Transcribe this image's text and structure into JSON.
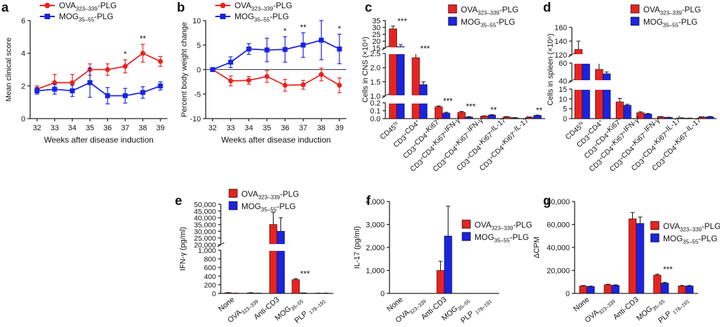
{
  "colors": {
    "ova": "#e8231f",
    "mog": "#1a23e0",
    "axis": "#222222"
  },
  "legend": {
    "ova": "OVA323–339-PLG",
    "mog": "MOG35–55-PLG"
  },
  "chart_data": [
    {
      "panel": "a",
      "type": "line",
      "xlabel": "Weeks after disease induction",
      "ylabel": "Mean clinical score",
      "x": [
        32,
        33,
        34,
        35,
        36,
        37,
        38,
        39
      ],
      "ylim": [
        0,
        6
      ],
      "yticks": [
        0,
        2,
        4,
        6
      ],
      "legend_position": "top",
      "series": [
        {
          "name": "OVA323–339-PLG",
          "values": [
            1.8,
            2.2,
            2.2,
            3.0,
            3.0,
            3.2,
            4.0,
            3.5
          ],
          "errors": [
            0.2,
            0.5,
            0.5,
            0.35,
            0.35,
            0.4,
            0.55,
            0.3
          ]
        },
        {
          "name": "MOG35–55-PLG",
          "values": [
            1.7,
            1.8,
            1.7,
            2.2,
            1.4,
            1.4,
            1.6,
            2.0
          ],
          "errors": [
            0.2,
            0.3,
            0.35,
            0.9,
            0.5,
            0.45,
            0.35,
            0.25
          ]
        }
      ],
      "annotations": [
        {
          "x": 37,
          "text": "*"
        },
        {
          "x": 38,
          "text": "**"
        }
      ]
    },
    {
      "panel": "b",
      "type": "line",
      "xlabel": "Weeks after disease induction",
      "ylabel": "Percent body weight change",
      "x": [
        32,
        33,
        34,
        35,
        36,
        37,
        38,
        39
      ],
      "ylim": [
        -10,
        10
      ],
      "yticks": [
        -10,
        -5,
        0,
        5,
        10
      ],
      "legend_position": "top",
      "series": [
        {
          "name": "OVA323–339-PLG",
          "values": [
            0,
            -2.3,
            -2.2,
            -1.4,
            -3.2,
            -3.1,
            -1.0,
            -3.2
          ],
          "errors": [
            0.2,
            1.0,
            0.8,
            1.2,
            1.2,
            0.9,
            1.3,
            1.5
          ]
        },
        {
          "name": "MOG35–55-PLG",
          "values": [
            0,
            1.5,
            4.2,
            4.0,
            4.1,
            5.0,
            6.0,
            4.2
          ],
          "errors": [
            0.2,
            1.1,
            1.1,
            2.4,
            2.6,
            2.5,
            4.0,
            3.0
          ]
        }
      ],
      "annotations": [
        {
          "x": 36,
          "text": "*"
        },
        {
          "x": 37,
          "text": "**"
        },
        {
          "x": 39,
          "text": "*"
        }
      ]
    },
    {
      "panel": "c",
      "type": "bar",
      "ylabel": "Cells in CNS (×10⁴)",
      "categories": [
        "CD45hi",
        "CD3+CD4+",
        "CD3+CD4+Ki67+",
        "CD3+CD4+Ki67+IFN-γ+",
        "CD3+CD4+Ki67−IFN-γ+",
        "CD3+CD4+Ki67+IL-17+",
        "CD3+CD4+Ki67−IL-17+"
      ],
      "broken_axis_segments": [
        {
          "range": [
            0,
            0.2
          ],
          "ticks": [
            0,
            0.1,
            0.2
          ]
        },
        {
          "range": [
            1.0,
            2.5
          ],
          "ticks": [
            1.0,
            1.5,
            2.0,
            2.5
          ]
        },
        {
          "range": [
            15,
            35
          ],
          "ticks": [
            15,
            20,
            25,
            30,
            35
          ]
        }
      ],
      "series": [
        {
          "name": "OVA323–339-PLG",
          "values": [
            29,
            2.35,
            0.15,
            0.08,
            0.03,
            0.02,
            0.015
          ],
          "errors": [
            2.0,
            0.15,
            0.01,
            0.01,
            0.005,
            0.005,
            0.005
          ]
        },
        {
          "name": "MOG35–55-PLG",
          "values": [
            16,
            1.4,
            0.07,
            0.02,
            0.045,
            0.01,
            0.04
          ],
          "errors": [
            1.5,
            0.1,
            0.01,
            0.005,
            0.005,
            0.003,
            0.004
          ]
        }
      ],
      "annotations": [
        {
          "index": 0,
          "text": "***"
        },
        {
          "index": 1,
          "text": "***"
        },
        {
          "index": 2,
          "text": "***"
        },
        {
          "index": 3,
          "text": "***"
        },
        {
          "index": 4,
          "text": "**"
        },
        {
          "index": 6,
          "text": "**"
        }
      ],
      "legend_position": "top-right"
    },
    {
      "panel": "d",
      "type": "bar",
      "ylabel": "Cells in spleen (×10⁶)",
      "categories": [
        "CD45hi",
        "CD3+CD4+",
        "CD3+CD4+Ki67+",
        "CD3+CD4+Ki67+IFN-γ+",
        "CD3+CD4+Ki67−IFN-γ+",
        "CD3+CD4+Ki67+IL-17+",
        "CD3+CD4+Ki67−IL-17+"
      ],
      "broken_axis_segments": [
        {
          "range": [
            0,
            15
          ],
          "ticks": [
            0,
            5,
            10,
            15
          ]
        },
        {
          "range": [
            40,
            60
          ],
          "ticks": [
            40,
            60
          ]
        },
        {
          "range": [
            120,
            160
          ],
          "ticks": [
            120,
            140,
            160
          ]
        }
      ],
      "series": [
        {
          "name": "OVA323–339-PLG",
          "values": [
            128,
            53,
            8.5,
            3.0,
            0.8,
            0.3,
            0.7
          ],
          "errors": [
            12,
            8,
            1.8,
            0.5,
            0.2,
            0.1,
            0.2
          ]
        },
        {
          "name": "MOG35–55-PLG",
          "values": [
            115,
            48,
            6.8,
            2.3,
            0.6,
            0.2,
            0.9
          ],
          "errors": [
            3,
            2,
            0.5,
            0.3,
            0.1,
            0.05,
            0.2
          ]
        }
      ],
      "legend_position": "top-right"
    },
    {
      "panel": "e",
      "type": "bar",
      "ylabel": "IFN-γ (pg/ml)",
      "categories": [
        "None",
        "OVA323–339",
        "Anti-CD3",
        "MOG35–55",
        "PLP 178–191"
      ],
      "broken_axis_segments": [
        {
          "range": [
            0,
            1000
          ],
          "ticks": [
            0,
            200,
            400,
            600,
            800,
            1000
          ]
        },
        {
          "range": [
            20000,
            50000
          ],
          "ticks": [
            20000,
            25000,
            30000,
            35000,
            40000,
            45000,
            50000
          ]
        }
      ],
      "series": [
        {
          "name": "OVA323–339-PLG",
          "values": [
            15,
            12,
            35000,
            320,
            5
          ],
          "errors": [
            5,
            5,
            9000,
            20,
            2
          ]
        },
        {
          "name": "MOG35–55-PLG",
          "values": [
            5,
            5,
            30000,
            10,
            5
          ],
          "errors": [
            2,
            2,
            10000,
            3,
            2
          ]
        }
      ],
      "annotations": [
        {
          "index": 3,
          "text": "***"
        }
      ],
      "legend_position": "top"
    },
    {
      "panel": "f",
      "type": "bar",
      "ylabel": "IL-17 (pg/ml)",
      "categories": [
        "None",
        "OVA323–339",
        "Anti-CD3",
        "MOG35–55",
        "PLP 178–191"
      ],
      "ylim": [
        0,
        4000
      ],
      "yticks": [
        0,
        1000,
        2000,
        3000,
        4000
      ],
      "series": [
        {
          "name": "OVA323–339-PLG",
          "values": [
            0,
            0,
            1000,
            0,
            0
          ],
          "errors": [
            0,
            0,
            400,
            0,
            0
          ]
        },
        {
          "name": "MOG35–55-PLG",
          "values": [
            0,
            0,
            2500,
            0,
            0
          ],
          "errors": [
            0,
            0,
            1300,
            0,
            0
          ]
        }
      ],
      "legend_position": "right"
    },
    {
      "panel": "g",
      "type": "bar",
      "ylabel": "ΔCPM",
      "categories": [
        "None",
        "OVA323–339",
        "Anti-CD3",
        "MOG35–55",
        "PLP 178–191"
      ],
      "ylim": [
        0,
        80000
      ],
      "yticks": [
        0,
        20000,
        40000,
        60000,
        80000
      ],
      "series": [
        {
          "name": "OVA323–339-PLG",
          "values": [
            6500,
            7500,
            65000,
            16000,
            6500
          ],
          "errors": [
            400,
            500,
            5500,
            800,
            500
          ]
        },
        {
          "name": "MOG35–55-PLG",
          "values": [
            6000,
            7000,
            61000,
            9000,
            6500
          ],
          "errors": [
            400,
            500,
            5500,
            600,
            500
          ]
        }
      ],
      "annotations": [
        {
          "index": 3,
          "text": "***"
        }
      ],
      "legend_position": "right"
    }
  ]
}
